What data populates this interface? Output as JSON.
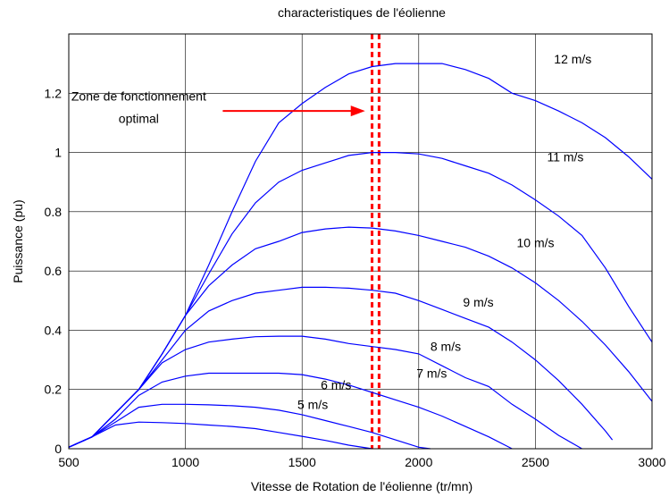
{
  "chart_data": {
    "type": "line",
    "title": "characteristiques de l'éolienne",
    "xlabel": "Vitesse de Rotation de l'éolienne (tr/mn)",
    "ylabel": "Puissance (pu)",
    "xlim": [
      500,
      3000
    ],
    "ylim": [
      0,
      1.4
    ],
    "xticks": [
      500,
      1000,
      1500,
      2000,
      2500,
      3000
    ],
    "yticks": [
      0,
      0.2,
      0.4,
      0.6,
      0.8,
      1,
      1.2
    ],
    "ytick_labels": [
      "0",
      "0.2",
      "0.4",
      "0.6",
      "0.8",
      "1",
      "1.2"
    ],
    "grid": true,
    "series_color": "#0000ff",
    "series": [
      {
        "name": "5 m/s",
        "label_pos": [
          1480,
          0.135
        ],
        "points": [
          [
            500,
            0.005
          ],
          [
            600,
            0.04
          ],
          [
            700,
            0.08
          ],
          [
            800,
            0.09
          ],
          [
            900,
            0.088
          ],
          [
            1000,
            0.085
          ],
          [
            1100,
            0.08
          ],
          [
            1200,
            0.075
          ],
          [
            1300,
            0.068
          ],
          [
            1400,
            0.055
          ],
          [
            1500,
            0.042
          ],
          [
            1600,
            0.028
          ],
          [
            1700,
            0.012
          ],
          [
            1800,
            0
          ]
        ]
      },
      {
        "name": "6 m/s",
        "label_pos": [
          1580,
          0.2
        ],
        "points": [
          [
            500,
            0.005
          ],
          [
            600,
            0.04
          ],
          [
            700,
            0.09
          ],
          [
            800,
            0.14
          ],
          [
            900,
            0.15
          ],
          [
            1000,
            0.15
          ],
          [
            1100,
            0.148
          ],
          [
            1200,
            0.145
          ],
          [
            1300,
            0.14
          ],
          [
            1400,
            0.13
          ],
          [
            1500,
            0.115
          ],
          [
            1600,
            0.095
          ],
          [
            1700,
            0.075
          ],
          [
            1800,
            0.055
          ],
          [
            1900,
            0.03
          ],
          [
            2000,
            0.005
          ],
          [
            2050,
            0
          ]
        ]
      },
      {
        "name": "7 m/s",
        "label_pos": [
          1990,
          0.24
        ],
        "points": [
          [
            500,
            0.005
          ],
          [
            600,
            0.04
          ],
          [
            700,
            0.1
          ],
          [
            800,
            0.18
          ],
          [
            900,
            0.225
          ],
          [
            1000,
            0.245
          ],
          [
            1100,
            0.255
          ],
          [
            1200,
            0.255
          ],
          [
            1300,
            0.255
          ],
          [
            1400,
            0.255
          ],
          [
            1500,
            0.25
          ],
          [
            1600,
            0.235
          ],
          [
            1700,
            0.215
          ],
          [
            1800,
            0.19
          ],
          [
            1900,
            0.165
          ],
          [
            2000,
            0.14
          ],
          [
            2100,
            0.11
          ],
          [
            2200,
            0.075
          ],
          [
            2300,
            0.04
          ],
          [
            2400,
            0
          ]
        ]
      },
      {
        "name": "8 m/s",
        "label_pos": [
          2050,
          0.33
        ],
        "points": [
          [
            500,
            0.005
          ],
          [
            600,
            0.04
          ],
          [
            700,
            0.12
          ],
          [
            800,
            0.2
          ],
          [
            900,
            0.29
          ],
          [
            1000,
            0.335
          ],
          [
            1100,
            0.36
          ],
          [
            1200,
            0.37
          ],
          [
            1300,
            0.378
          ],
          [
            1400,
            0.38
          ],
          [
            1500,
            0.38
          ],
          [
            1600,
            0.37
          ],
          [
            1700,
            0.355
          ],
          [
            1800,
            0.345
          ],
          [
            1900,
            0.335
          ],
          [
            2000,
            0.32
          ],
          [
            2100,
            0.28
          ],
          [
            2200,
            0.24
          ],
          [
            2300,
            0.21
          ],
          [
            2400,
            0.15
          ],
          [
            2500,
            0.1
          ],
          [
            2600,
            0.045
          ],
          [
            2700,
            0
          ]
        ]
      },
      {
        "name": "9 m/s",
        "label_pos": [
          2190,
          0.48
        ],
        "points": [
          [
            500,
            0.005
          ],
          [
            600,
            0.04
          ],
          [
            700,
            0.12
          ],
          [
            800,
            0.2
          ],
          [
            900,
            0.3
          ],
          [
            1000,
            0.4
          ],
          [
            1100,
            0.465
          ],
          [
            1200,
            0.5
          ],
          [
            1300,
            0.525
          ],
          [
            1400,
            0.535
          ],
          [
            1500,
            0.545
          ],
          [
            1600,
            0.545
          ],
          [
            1700,
            0.542
          ],
          [
            1800,
            0.535
          ],
          [
            1900,
            0.525
          ],
          [
            2000,
            0.5
          ],
          [
            2100,
            0.47
          ],
          [
            2200,
            0.44
          ],
          [
            2300,
            0.41
          ],
          [
            2400,
            0.36
          ],
          [
            2500,
            0.3
          ],
          [
            2600,
            0.23
          ],
          [
            2700,
            0.15
          ],
          [
            2800,
            0.06
          ],
          [
            2830,
            0.03
          ]
        ]
      },
      {
        "name": "10 m/s",
        "label_pos": [
          2420,
          0.68
        ],
        "points": [
          [
            500,
            0.005
          ],
          [
            600,
            0.04
          ],
          [
            700,
            0.12
          ],
          [
            800,
            0.2
          ],
          [
            900,
            0.32
          ],
          [
            1000,
            0.45
          ],
          [
            1100,
            0.55
          ],
          [
            1200,
            0.62
          ],
          [
            1300,
            0.675
          ],
          [
            1400,
            0.7
          ],
          [
            1500,
            0.73
          ],
          [
            1600,
            0.742
          ],
          [
            1700,
            0.748
          ],
          [
            1800,
            0.745
          ],
          [
            1900,
            0.735
          ],
          [
            2000,
            0.72
          ],
          [
            2100,
            0.7
          ],
          [
            2200,
            0.68
          ],
          [
            2300,
            0.65
          ],
          [
            2400,
            0.61
          ],
          [
            2500,
            0.56
          ],
          [
            2600,
            0.5
          ],
          [
            2700,
            0.43
          ],
          [
            2800,
            0.35
          ],
          [
            2900,
            0.26
          ],
          [
            3000,
            0.16
          ]
        ]
      },
      {
        "name": "11 m/s",
        "label_pos": [
          2550,
          0.97
        ],
        "points": [
          [
            500,
            0.005
          ],
          [
            600,
            0.04
          ],
          [
            700,
            0.12
          ],
          [
            800,
            0.2
          ],
          [
            900,
            0.32
          ],
          [
            1000,
            0.45
          ],
          [
            1100,
            0.59
          ],
          [
            1200,
            0.725
          ],
          [
            1300,
            0.83
          ],
          [
            1400,
            0.9
          ],
          [
            1500,
            0.94
          ],
          [
            1600,
            0.965
          ],
          [
            1700,
            0.99
          ],
          [
            1800,
            1.0
          ],
          [
            1900,
            1.0
          ],
          [
            2000,
            0.995
          ],
          [
            2100,
            0.98
          ],
          [
            2200,
            0.955
          ],
          [
            2300,
            0.93
          ],
          [
            2400,
            0.89
          ],
          [
            2500,
            0.84
          ],
          [
            2600,
            0.785
          ],
          [
            2700,
            0.72
          ],
          [
            2800,
            0.61
          ],
          [
            2900,
            0.48
          ],
          [
            3000,
            0.36
          ]
        ]
      },
      {
        "name": "12 m/s",
        "label_pos": [
          2580,
          1.3
        ],
        "points": [
          [
            500,
            0.005
          ],
          [
            600,
            0.04
          ],
          [
            700,
            0.12
          ],
          [
            800,
            0.2
          ],
          [
            900,
            0.32
          ],
          [
            1000,
            0.45
          ],
          [
            1100,
            0.62
          ],
          [
            1200,
            0.8
          ],
          [
            1300,
            0.97
          ],
          [
            1400,
            1.1
          ],
          [
            1500,
            1.165
          ],
          [
            1600,
            1.22
          ],
          [
            1700,
            1.265
          ],
          [
            1800,
            1.29
          ],
          [
            1900,
            1.3
          ],
          [
            2000,
            1.3
          ],
          [
            2100,
            1.3
          ],
          [
            2200,
            1.28
          ],
          [
            2300,
            1.25
          ],
          [
            2400,
            1.2
          ],
          [
            2500,
            1.175
          ],
          [
            2600,
            1.14
          ],
          [
            2700,
            1.1
          ],
          [
            2800,
            1.05
          ],
          [
            2900,
            0.985
          ],
          [
            3000,
            0.91
          ]
        ]
      }
    ],
    "optimal_zone": {
      "x_from": 1800,
      "x_to": 1830,
      "color": "#ff0000"
    },
    "annotation": {
      "lines": [
        "Zone de fonctionnement",
        "optimal"
      ],
      "text_pos": [
        800,
        1.145
      ],
      "arrow": {
        "from": [
          1160,
          1.14
        ],
        "to": [
          1770,
          1.14
        ]
      },
      "color": "#ff0000"
    }
  }
}
